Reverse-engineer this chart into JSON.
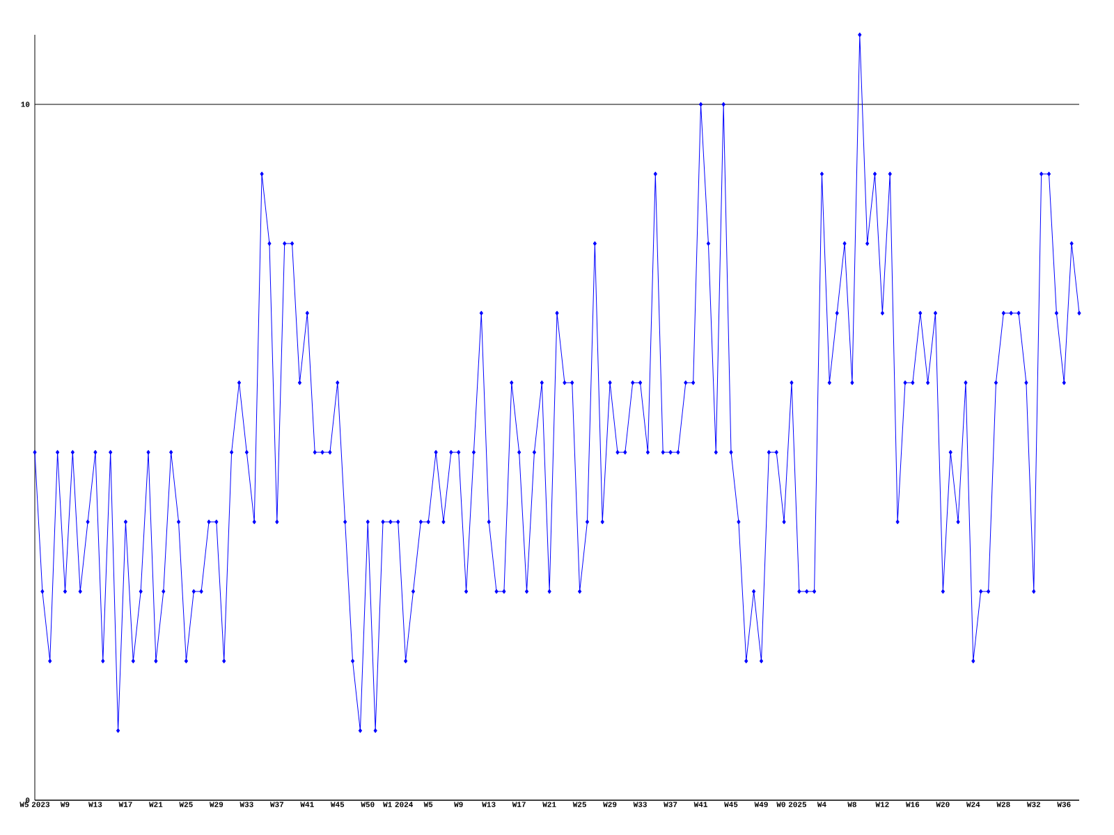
{
  "chart_data": {
    "type": "line",
    "categories": [
      "W5 2023",
      null,
      null,
      null,
      "W9",
      null,
      null,
      null,
      "W13",
      null,
      null,
      null,
      "W17",
      null,
      null,
      null,
      "W21",
      null,
      null,
      null,
      "W25",
      null,
      null,
      null,
      "W29",
      null,
      null,
      null,
      "W33",
      null,
      null,
      null,
      "W37",
      null,
      null,
      null,
      "W41",
      null,
      null,
      null,
      "W45",
      null,
      null,
      null,
      "W50",
      null,
      null,
      null,
      "W1 2024",
      null,
      null,
      null,
      "W5",
      null,
      null,
      null,
      "W9",
      null,
      null,
      null,
      "W13",
      null,
      null,
      null,
      "W17",
      null,
      null,
      null,
      "W21",
      null,
      null,
      null,
      "W25",
      null,
      null,
      null,
      "W29",
      null,
      null,
      null,
      "W33",
      null,
      null,
      null,
      "W37",
      null,
      null,
      null,
      "W41",
      null,
      null,
      null,
      "W45",
      null,
      null,
      null,
      "W49",
      null,
      null,
      null,
      "W0 2025",
      null,
      null,
      null,
      "W4",
      null,
      null,
      null,
      "W8",
      null,
      null,
      null,
      "W12",
      null,
      null,
      null,
      "W16",
      null,
      null,
      null,
      "W20",
      null,
      null,
      null,
      "W24",
      null,
      null,
      null,
      "W28",
      null,
      null,
      null,
      "W32",
      null,
      null,
      null,
      "W36",
      null,
      null
    ],
    "values": [
      5,
      3,
      2,
      5,
      3,
      5,
      3,
      4,
      5,
      2,
      5,
      1,
      4,
      2,
      3,
      5,
      2,
      3,
      5,
      4,
      2,
      3,
      3,
      4,
      4,
      2,
      5,
      6,
      5,
      4,
      9,
      8,
      4,
      8,
      8,
      6,
      7,
      5,
      5,
      5,
      6,
      4,
      2,
      1,
      4,
      1,
      4,
      4,
      4,
      2,
      3,
      4,
      4,
      5,
      4,
      5,
      5,
      3,
      5,
      7,
      4,
      3,
      3,
      6,
      5,
      3,
      5,
      6,
      3,
      7,
      6,
      6,
      3,
      4,
      8,
      4,
      6,
      5,
      5,
      6,
      6,
      5,
      9,
      5,
      5,
      5,
      6,
      6,
      10,
      8,
      5,
      10,
      5,
      4,
      2,
      3,
      2,
      5,
      5,
      4,
      6,
      3,
      3,
      3,
      9,
      6,
      7,
      8,
      6,
      11,
      8,
      9,
      7,
      9,
      4,
      6,
      6,
      7,
      6,
      7,
      3,
      5,
      4,
      6,
      2,
      3,
      3,
      6,
      7,
      7,
      7,
      6,
      3,
      9,
      9,
      7,
      6,
      8,
      7
    ],
    "color": "#0000ff",
    "ylim": [
      0,
      11
    ],
    "yticks": [
      0,
      10
    ],
    "grid": "y",
    "marker": "diamond",
    "line_style": "solid"
  }
}
